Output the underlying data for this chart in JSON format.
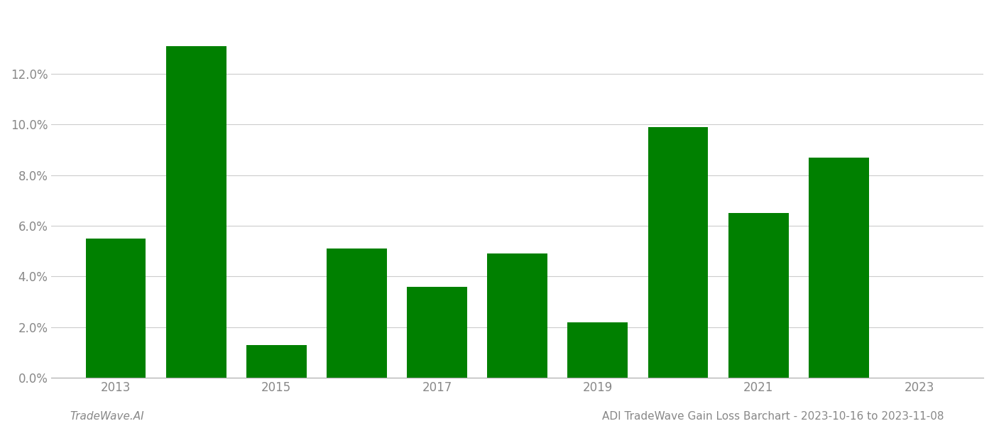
{
  "years": [
    2013,
    2014,
    2015,
    2016,
    2017,
    2018,
    2019,
    2020,
    2021,
    2022
  ],
  "values": [
    0.055,
    0.131,
    0.013,
    0.051,
    0.036,
    0.049,
    0.022,
    0.099,
    0.065,
    0.087
  ],
  "bar_color": "#008000",
  "background_color": "#ffffff",
  "ylim_max": 0.145,
  "yticks": [
    0.0,
    0.02,
    0.04,
    0.06,
    0.08,
    0.1,
    0.12
  ],
  "xticks": [
    2013,
    2015,
    2017,
    2019,
    2021,
    2023
  ],
  "xlim": [
    2012.2,
    2023.8
  ],
  "grid_color": "#cccccc",
  "footer_left": "TradeWave.AI",
  "footer_right": "ADI TradeWave Gain Loss Barchart - 2023-10-16 to 2023-11-08",
  "tick_label_color": "#888888",
  "footer_fontsize": 11,
  "axis_fontsize": 12,
  "bar_width": 0.75,
  "spine_color": "#aaaaaa"
}
